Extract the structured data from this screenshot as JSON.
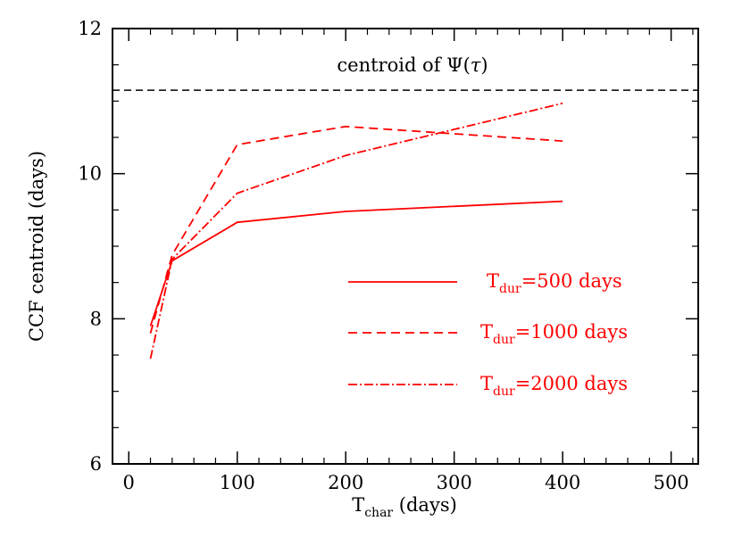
{
  "chart_data": {
    "type": "line",
    "title": "",
    "xlabel_main": "T",
    "xlabel_sub": "char",
    "xlabel_rest": " (days)",
    "ylabel": "CCF centroid (days)",
    "xlim": [
      -15,
      525
    ],
    "ylim": [
      6,
      12
    ],
    "xticks": [
      0,
      100,
      200,
      300,
      400,
      500
    ],
    "yticks": [
      6,
      8,
      10,
      12
    ],
    "xminor": [
      20,
      40,
      60,
      80,
      120,
      140,
      160,
      180,
      220,
      240,
      260,
      280,
      320,
      340,
      360,
      380,
      420,
      440,
      460,
      480,
      520
    ],
    "yminor": [
      6.5,
      7,
      7.5,
      8.5,
      9,
      9.5,
      10.5,
      11,
      11.5
    ],
    "series": [
      {
        "name": "T_dur=500 days",
        "legend_main": "T",
        "legend_sub": "dur",
        "legend_rest": "=500 days",
        "style": "solid",
        "color": "#ff0000",
        "x": [
          20,
          40,
          100,
          200,
          400
        ],
        "values": [
          7.9,
          8.8,
          9.33,
          9.48,
          9.62
        ]
      },
      {
        "name": "T_dur=1000 days",
        "legend_main": "T",
        "legend_sub": "dur",
        "legend_rest": "=1000 days",
        "style": "dashed",
        "color": "#ff0000",
        "x": [
          20,
          40,
          100,
          200,
          400
        ],
        "values": [
          7.8,
          8.88,
          10.4,
          10.65,
          10.45
        ]
      },
      {
        "name": "T_dur=2000 days",
        "legend_main": "T",
        "legend_sub": "dur",
        "legend_rest": "=2000 days",
        "style": "dashdot",
        "color": "#ff0000",
        "x": [
          20,
          40,
          100,
          200,
          400
        ],
        "values": [
          7.45,
          8.82,
          9.73,
          10.25,
          10.97
        ]
      }
    ],
    "reference_line": {
      "y": 11.15,
      "style": "dashed",
      "color": "#000000"
    },
    "annotation": {
      "text_pre": "centroid of ",
      "text_psi": "Ψ",
      "text_open": "(",
      "text_tau": "τ",
      "text_close": ")"
    }
  }
}
